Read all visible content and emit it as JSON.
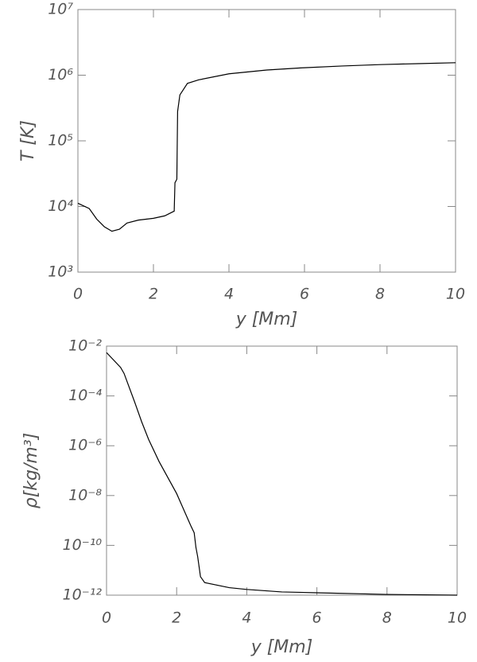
{
  "chart_data": [
    {
      "type": "line",
      "y_label": "T [K]",
      "x_label": "y [Mm]",
      "log_y": true,
      "color": "#000000",
      "x": [
        0,
        0.3,
        0.5,
        0.7,
        0.9,
        1.1,
        1.3,
        1.6,
        2,
        2.3,
        2.55,
        2.57,
        2.62,
        2.64,
        2.7,
        2.9,
        3.2,
        4,
        5,
        6,
        7,
        8,
        9,
        10
      ],
      "values": [
        11200,
        9300,
        6400,
        4900,
        4200,
        4500,
        5600,
        6200,
        6600,
        7200,
        8500,
        23000,
        26000,
        280000,
        500000,
        750000,
        850000,
        1050000,
        1200000,
        1300000,
        1380000,
        1450000,
        1500000,
        1550000
      ],
      "xlim": [
        0,
        10
      ],
      "xticks": [
        0,
        2,
        4,
        6,
        8,
        10
      ],
      "ylim": [
        1000,
        10000000
      ],
      "yticks": [
        {
          "value": 1000,
          "label": "10³"
        },
        {
          "value": 10000,
          "label": "10⁴"
        },
        {
          "value": 100000,
          "label": "10⁵"
        },
        {
          "value": 1000000,
          "label": "10⁶"
        },
        {
          "value": 10000000,
          "label": "10⁷"
        }
      ]
    },
    {
      "type": "line",
      "y_label": "ρ[kg/m³]",
      "x_label": "y [Mm]",
      "log_y": true,
      "color": "#000000",
      "x": [
        0,
        0.4,
        0.5,
        0.8,
        1,
        1.2,
        1.5,
        2,
        2.4,
        2.5,
        2.55,
        2.6,
        2.68,
        2.8,
        3.5,
        4,
        5,
        6,
        8,
        10
      ],
      "values": [
        0.0055,
        0.0014,
        0.0008,
        5.8e-05,
        9.3e-06,
        1.8e-06,
        2.3e-07,
        1.2e-08,
        6.3e-10,
        3.2e-10,
        8.3e-11,
        3.5e-11,
        5.5e-12,
        3.2e-12,
        2e-12,
        1.7e-12,
        1.35e-12,
        1.25e-12,
        1.07e-12,
        1e-12
      ],
      "xlim": [
        0,
        10
      ],
      "xticks": [
        0,
        2,
        4,
        6,
        8,
        10
      ],
      "ylim": [
        1e-12,
        0.01
      ],
      "yticks": [
        {
          "value": 1e-12,
          "label": "10⁻¹²"
        },
        {
          "value": 1e-10,
          "label": "10⁻¹⁰"
        },
        {
          "value": 1e-08,
          "label": "10⁻⁸"
        },
        {
          "value": 1e-06,
          "label": "10⁻⁶"
        },
        {
          "value": 0.0001,
          "label": "10⁻⁴"
        },
        {
          "value": 0.01,
          "label": "10⁻²"
        }
      ]
    }
  ]
}
